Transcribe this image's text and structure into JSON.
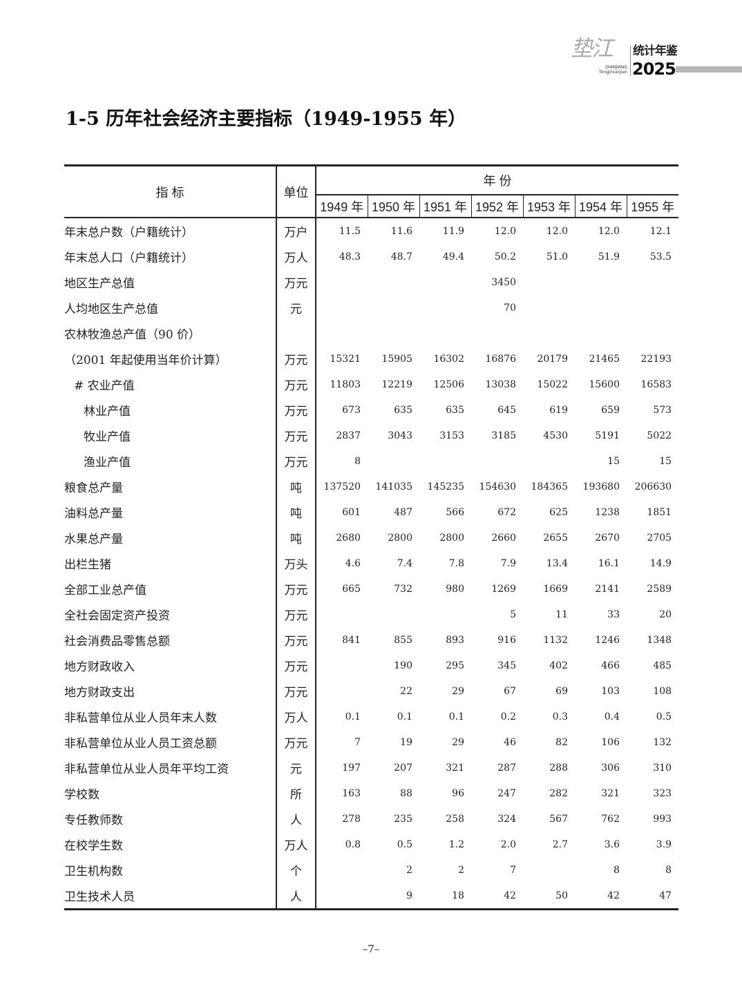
{
  "header": {
    "logo_calligraphy": "垫江",
    "logo_pinyin_1": "DIANJIANG",
    "logo_pinyin_2": "Tongjinianjian",
    "logo_title": "统计年鉴",
    "logo_year": "2025"
  },
  "title": "1-5  历年社会经济主要指标（1949-1955 年）",
  "table": {
    "col_indicator": "指 标",
    "col_unit": "单位",
    "col_years": "年 份",
    "years": [
      "1949 年",
      "1950 年",
      "1951 年",
      "1952 年",
      "1953 年",
      "1954 年",
      "1955 年"
    ],
    "rows": [
      {
        "label": "年末总户数（户籍统计）",
        "unit": "万户",
        "values": [
          "11.5",
          "11.6",
          "11.9",
          "12.0",
          "12.0",
          "12.0",
          "12.1"
        ]
      },
      {
        "label": "年末总人口（户籍统计）",
        "unit": "万人",
        "values": [
          "48.3",
          "48.7",
          "49.4",
          "50.2",
          "51.0",
          "51.9",
          "53.5"
        ]
      },
      {
        "label": "地区生产总值",
        "unit": "万元",
        "values": [
          "",
          "",
          "",
          "3450",
          "",
          "",
          ""
        ]
      },
      {
        "label": "人均地区生产总值",
        "unit": "元",
        "values": [
          "",
          "",
          "",
          "70",
          "",
          "",
          ""
        ]
      },
      {
        "label": "农林牧渔总产值（90 价）",
        "unit": "",
        "values": [
          "",
          "",
          "",
          "",
          "",
          "",
          ""
        ]
      },
      {
        "label": "（2001 年起使用当年价计算）",
        "unit": "万元",
        "values": [
          "15321",
          "15905",
          "16302",
          "16876",
          "20179",
          "21465",
          "22193"
        ]
      },
      {
        "label": "# 农业产值",
        "unit": "万元",
        "values": [
          "11803",
          "12219",
          "12506",
          "13038",
          "15022",
          "15600",
          "16583"
        ]
      },
      {
        "label": "林业产值",
        "unit": "万元",
        "values": [
          "673",
          "635",
          "635",
          "645",
          "619",
          "659",
          "573"
        ]
      },
      {
        "label": "牧业产值",
        "unit": "万元",
        "values": [
          "2837",
          "3043",
          "3153",
          "3185",
          "4530",
          "5191",
          "5022"
        ]
      },
      {
        "label": "渔业产值",
        "unit": "万元",
        "values": [
          "8",
          "",
          "",
          "",
          "",
          "15",
          "15"
        ]
      },
      {
        "label": "粮食总产量",
        "unit": "吨",
        "values": [
          "137520",
          "141035",
          "145235",
          "154630",
          "184365",
          "193680",
          "206630"
        ]
      },
      {
        "label": "油料总产量",
        "unit": "吨",
        "values": [
          "601",
          "487",
          "566",
          "672",
          "625",
          "1238",
          "1851"
        ]
      },
      {
        "label": "水果总产量",
        "unit": "吨",
        "values": [
          "2680",
          "2800",
          "2800",
          "2660",
          "2655",
          "2670",
          "2705"
        ]
      },
      {
        "label": "出栏生猪",
        "unit": "万头",
        "values": [
          "4.6",
          "7.4",
          "7.8",
          "7.9",
          "13.4",
          "16.1",
          "14.9"
        ]
      },
      {
        "label": "全部工业总产值",
        "unit": "万元",
        "values": [
          "665",
          "732",
          "980",
          "1269",
          "1669",
          "2141",
          "2589"
        ]
      },
      {
        "label": "全社会固定资产投资",
        "unit": "万元",
        "values": [
          "",
          "",
          "",
          "5",
          "11",
          "33",
          "20"
        ]
      },
      {
        "label": "社会消费品零售总额",
        "unit": "万元",
        "values": [
          "841",
          "855",
          "893",
          "916",
          "1132",
          "1246",
          "1348"
        ]
      },
      {
        "label": "地方财政收入",
        "unit": "万元",
        "values": [
          "",
          "190",
          "295",
          "345",
          "402",
          "466",
          "485"
        ]
      },
      {
        "label": "地方财政支出",
        "unit": "万元",
        "values": [
          "",
          "22",
          "29",
          "67",
          "69",
          "103",
          "108"
        ]
      },
      {
        "label": "非私营单位从业人员年末人数",
        "unit": "万人",
        "values": [
          "0.1",
          "0.1",
          "0.1",
          "0.2",
          "0.3",
          "0.4",
          "0.5"
        ]
      },
      {
        "label": "非私营单位从业人员工资总额",
        "unit": "万元",
        "values": [
          "7",
          "19",
          "29",
          "46",
          "82",
          "106",
          "132"
        ]
      },
      {
        "label": "非私营单位从业人员年平均工资",
        "unit": "元",
        "values": [
          "197",
          "207",
          "321",
          "287",
          "288",
          "306",
          "310"
        ]
      },
      {
        "label": "学校数",
        "unit": "所",
        "values": [
          "163",
          "88",
          "96",
          "247",
          "282",
          "321",
          "323"
        ]
      },
      {
        "label": "专任教师数",
        "unit": "人",
        "values": [
          "278",
          "235",
          "258",
          "324",
          "567",
          "762",
          "993"
        ]
      },
      {
        "label": "在校学生数",
        "unit": "万人",
        "values": [
          "0.8",
          "0.5",
          "1.2",
          "2.0",
          "2.7",
          "3.6",
          "3.9"
        ]
      },
      {
        "label": "卫生机构数",
        "unit": "个",
        "values": [
          "",
          "2",
          "2",
          "7",
          "",
          "8",
          "8"
        ]
      },
      {
        "label": "卫生技术人员",
        "unit": "人",
        "values": [
          "",
          "9",
          "18",
          "42",
          "50",
          "42",
          "47"
        ]
      }
    ]
  },
  "page_number": "–7–"
}
